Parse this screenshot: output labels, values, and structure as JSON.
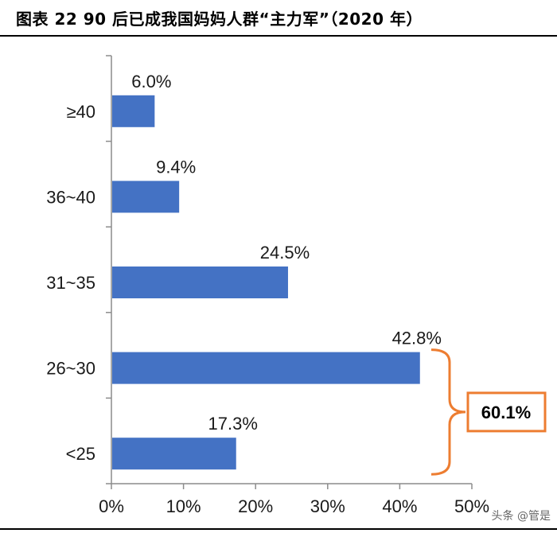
{
  "page": {
    "title": "图表 22 90 后已成我国妈妈人群“主力军”（2020 年）",
    "watermark": "头条 @管是"
  },
  "chart_data": {
    "type": "bar",
    "orientation": "horizontal",
    "categories": [
      "≥40",
      "36~40",
      "31~35",
      "26~30",
      "<25"
    ],
    "values": [
      6.0,
      9.4,
      24.5,
      42.8,
      17.3
    ],
    "value_labels": [
      "6.0%",
      "9.4%",
      "24.5%",
      "42.8%",
      "17.3%"
    ],
    "xlim": [
      0,
      50
    ],
    "x_ticks": [
      "0%",
      "10%",
      "20%",
      "30%",
      "40%",
      "50%"
    ],
    "grid": false,
    "bar_color": "#4472C4",
    "annotation": {
      "text": "60.1%",
      "brackets_categories": [
        "26~30",
        "<25"
      ],
      "color": "#ED7D31"
    }
  }
}
